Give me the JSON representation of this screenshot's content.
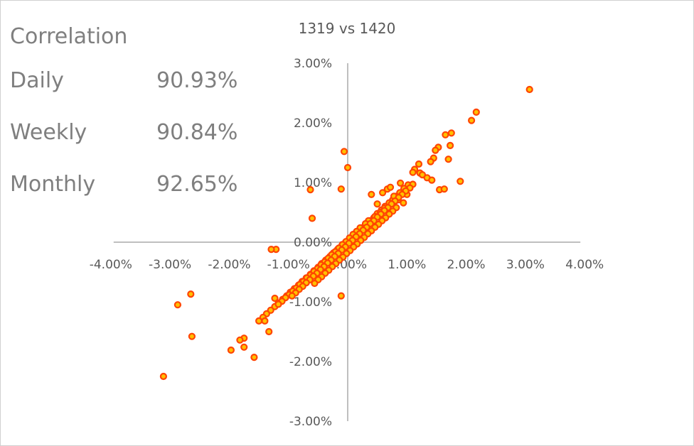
{
  "panel": {
    "heading": "Correlation",
    "rows": [
      {
        "label": "Daily",
        "value": "90.93%"
      },
      {
        "label": "Weekly",
        "value": "90.84%"
      },
      {
        "label": "Monthly",
        "value": "92.65%"
      }
    ]
  },
  "chart_data": {
    "type": "scatter",
    "title": "1319 vs 1420",
    "xlabel": "",
    "ylabel": "",
    "xlim": [
      -0.04,
      0.04
    ],
    "ylim": [
      -0.03,
      0.03
    ],
    "x_ticks": [
      "-4.00%",
      "-3.00%",
      "-2.00%",
      "-1.00%",
      "0.00%",
      "1.00%",
      "2.00%",
      "3.00%",
      "4.00%"
    ],
    "y_ticks": [
      "3.00%",
      "2.00%",
      "1.00%",
      "0.00%",
      "-1.00%",
      "-2.00%",
      "-3.00%"
    ],
    "grid": false,
    "marker": {
      "fill": "#ffc000",
      "edge": "#ff4500"
    },
    "axis_color": "#bfbfbf",
    "series": [
      {
        "x": [
          0.0307,
          0.0217,
          0.0209,
          0.019,
          0.0175,
          0.0173,
          0.0165,
          0.017,
          0.0153,
          0.0148,
          0.0145,
          0.014,
          0.0155,
          0.0163,
          0.012,
          0.0113,
          0.011,
          0.0122,
          0.0126,
          0.0134,
          0.0142,
          0.0102,
          0.0095,
          0.0088,
          0.0082,
          0.0076,
          0.007,
          0.0063,
          0.0057,
          0.005,
          0.0044,
          0.0037,
          0.003,
          0.0024,
          0.0017,
          0.001,
          0.0004,
          -0.0003,
          -0.001,
          -0.0017,
          -0.0024,
          -0.003,
          -0.0037,
          -0.0044,
          -0.005,
          -0.0057,
          -0.0063,
          -0.007,
          -0.0077,
          -0.0083,
          -0.009,
          -0.0097,
          -0.0103,
          -0.011,
          -0.0117,
          -0.0123,
          -0.013,
          -0.0137,
          -0.0143,
          -0.015,
          -0.0175,
          -0.0175,
          -0.0182,
          -0.0197,
          -0.0311,
          -0.0287,
          -0.0265,
          -0.0263,
          -0.0158,
          -0.014,
          -0.0133,
          -0.0123,
          -0.0121,
          -0.0129,
          -0.0011,
          0.0,
          -0.0006,
          -0.0063,
          -0.006,
          -0.0011,
          0.005,
          0.004,
          0.0059,
          0.0067,
          0.0072,
          0.0089,
          0.01,
          0.0078,
          0.0085,
          0.0094,
          0.0062,
          0.0055,
          0.0046,
          0.0035,
          0.003,
          0.0021,
          0.0015,
          0.0009,
          0.0003,
          -0.0003,
          -0.0009,
          -0.0015,
          -0.0021,
          -0.0027,
          -0.0033,
          -0.0039,
          -0.0045,
          -0.0051,
          -0.0057,
          -0.0063,
          -0.0069,
          -0.0075,
          -0.0081,
          -0.0087,
          -0.0093,
          -0.0099,
          -0.0105,
          -0.0111,
          -0.0117,
          0.0082,
          0.0076,
          0.007,
          0.0064,
          0.0058,
          0.0052,
          0.0046,
          0.004,
          0.0034,
          0.0028,
          0.0022,
          0.0016,
          0.001,
          0.0004,
          -0.0002,
          -0.0008,
          -0.0014,
          -0.002,
          -0.0026,
          -0.0032,
          -0.0038,
          -0.0044,
          -0.005,
          -0.0056,
          0.011,
          0.0105,
          0.0098,
          0.0092,
          0.0086,
          0.008,
          0.0074,
          0.0068,
          0.0062,
          0.0056,
          0.005,
          0.0044,
          0.0038,
          0.0032,
          0.0026,
          0.002,
          0.0014,
          0.0008,
          0.0002,
          -0.0004,
          -0.001,
          -0.0016,
          -0.0022,
          -0.0028,
          -0.0034,
          -0.004,
          -0.0046,
          -0.0052,
          -0.0058,
          -0.0064,
          -0.007,
          -0.0076,
          -0.0082,
          -0.0088,
          -0.0094
        ],
        "y": [
          0.0256,
          0.0218,
          0.0204,
          0.0102,
          0.0183,
          0.0162,
          0.018,
          0.0139,
          0.0159,
          0.0154,
          0.0141,
          0.0135,
          0.0088,
          0.0089,
          0.0131,
          0.0122,
          0.0117,
          0.0116,
          0.0113,
          0.0108,
          0.0104,
          0.0096,
          0.009,
          0.0083,
          0.0077,
          0.0071,
          0.0066,
          0.006,
          0.0054,
          0.0048,
          0.0041,
          0.0036,
          0.003,
          0.0024,
          0.0018,
          0.0012,
          0.0006,
          0.0,
          -0.0006,
          -0.0012,
          -0.0018,
          -0.0024,
          -0.003,
          -0.0036,
          -0.0042,
          -0.0048,
          -0.0054,
          -0.006,
          -0.0066,
          -0.0072,
          -0.0078,
          -0.0084,
          -0.009,
          -0.0096,
          -0.0102,
          -0.0108,
          -0.0114,
          -0.012,
          -0.0126,
          -0.0132,
          -0.0161,
          -0.0176,
          -0.0164,
          -0.0181,
          -0.0225,
          -0.0105,
          -0.0087,
          -0.0158,
          -0.0193,
          -0.0132,
          -0.015,
          -0.0094,
          -0.0012,
          -0.0012,
          0.0089,
          0.0125,
          0.0152,
          0.0088,
          0.004,
          -0.009,
          0.0064,
          0.008,
          0.0083,
          0.0089,
          0.0092,
          0.0099,
          0.008,
          0.0077,
          0.0071,
          0.0066,
          0.0057,
          0.005,
          0.0043,
          0.0036,
          0.0031,
          0.0024,
          0.0018,
          0.0013,
          0.0007,
          0.0001,
          -0.0004,
          -0.001,
          -0.0016,
          -0.0021,
          -0.0027,
          -0.0033,
          -0.0038,
          -0.0044,
          -0.0049,
          -0.0055,
          -0.006,
          -0.0066,
          -0.0071,
          -0.0077,
          -0.0082,
          -0.0088,
          -0.0093,
          -0.0099,
          -0.0104,
          0.0058,
          0.0052,
          0.0047,
          0.0041,
          0.0036,
          0.003,
          0.0025,
          0.0019,
          0.0014,
          0.0008,
          0.0003,
          -0.0003,
          -0.0008,
          -0.0014,
          -0.0019,
          -0.0025,
          -0.003,
          -0.0036,
          -0.0041,
          -0.0047,
          -0.0052,
          -0.0058,
          -0.0063,
          -0.0069,
          0.0097,
          0.0091,
          0.0086,
          0.008,
          0.0075,
          0.0069,
          0.0064,
          0.0058,
          0.0053,
          0.0047,
          0.0042,
          0.0036,
          0.0031,
          0.0025,
          0.002,
          0.0014,
          0.0009,
          0.0003,
          -0.0002,
          -0.0008,
          -0.0013,
          -0.0019,
          -0.0024,
          -0.003,
          -0.0035,
          -0.0041,
          -0.0046,
          -0.0052,
          -0.0057,
          -0.0063,
          -0.0068,
          -0.0074,
          -0.0079,
          -0.0085,
          -0.009
        ]
      }
    ]
  }
}
